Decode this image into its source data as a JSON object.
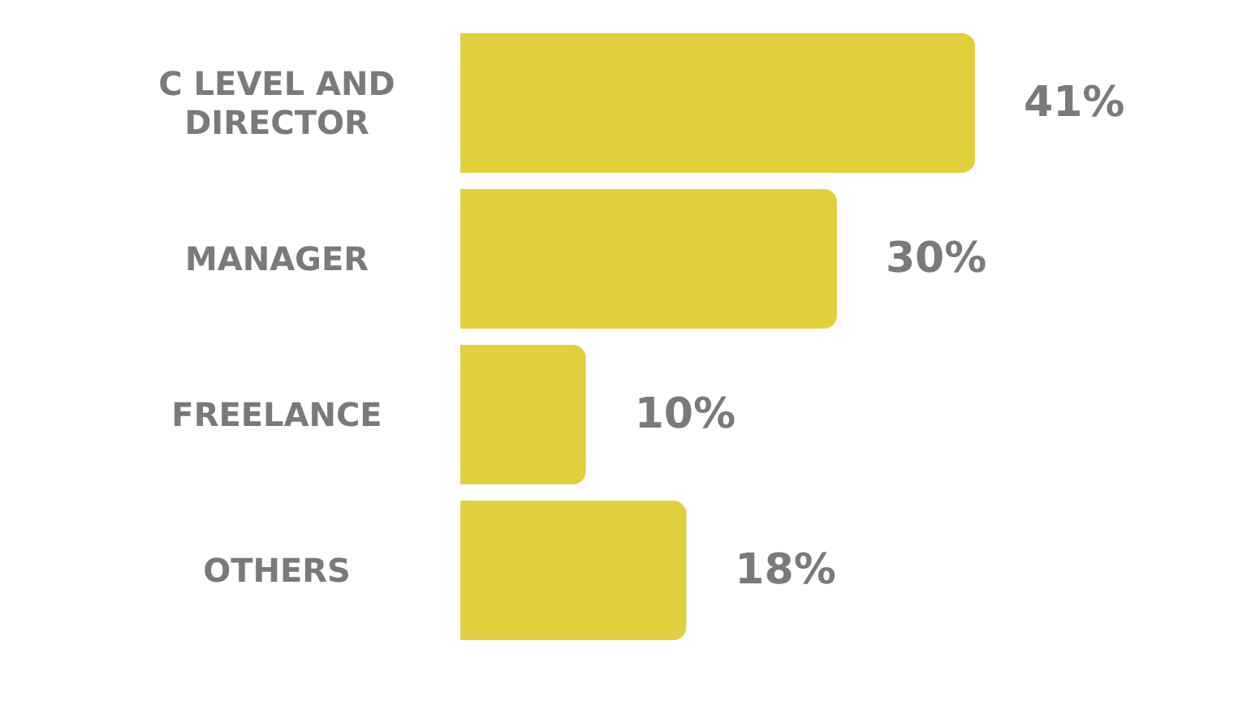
{
  "chart_data": {
    "type": "bar",
    "orientation": "horizontal",
    "categories": [
      "C LEVEL AND DIRECTOR",
      "MANAGER",
      "FREELANCE",
      "OTHERS"
    ],
    "values": [
      41,
      30,
      10,
      18
    ],
    "color": "#e1cf3e",
    "value_labels": [
      "41%",
      "30%",
      "10%",
      "18%"
    ],
    "tick_labels": "y"
  }
}
